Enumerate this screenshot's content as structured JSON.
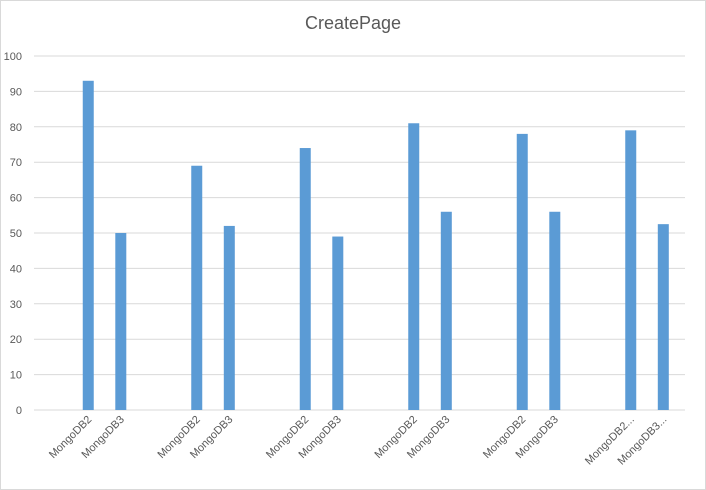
{
  "chart_data": {
    "type": "bar",
    "title": "CreatePage",
    "xlabel": "",
    "ylabel": "",
    "categories": [
      "MongoDB2",
      "MongoDB3",
      "MongoDB2",
      "MongoDB3",
      "MongoDB2",
      "MongoDB3",
      "MongoDB2",
      "MongoDB3",
      "MongoDB2",
      "MongoDB3",
      "MongoDB2...",
      "MongoDB3..."
    ],
    "values": [
      93,
      50,
      69,
      52,
      74,
      49,
      81,
      56,
      78,
      56,
      79,
      52.5
    ],
    "ylim": [
      0,
      100
    ],
    "yticks": [
      0,
      10,
      20,
      30,
      40,
      50,
      60,
      70,
      80,
      90,
      100
    ],
    "grid": true,
    "legend": "none",
    "bar_color": "#5b9bd5",
    "grid_color": "#d9d9d9",
    "axis_color": "#d9d9d9"
  }
}
